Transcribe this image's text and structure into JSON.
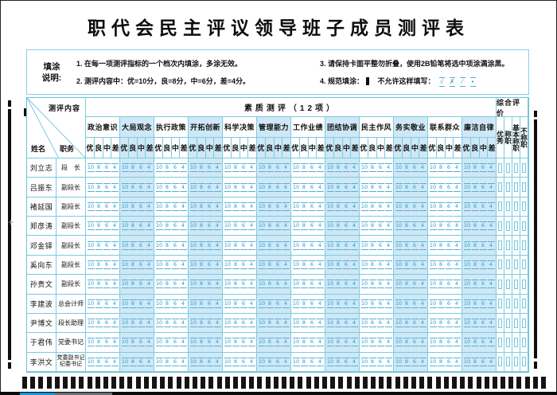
{
  "title": "职代会民主评议领导班子成员测评表",
  "instructions": {
    "label_line1": "填涂",
    "label_line2": "说明:",
    "items": [
      "1. 在每一项测评指标的一个档次内填涂，多涂无效。",
      "2. 测评内容中：优=10分，良=8分，中=6分，差=4分。",
      "3. 请保持卡面平整勿折叠，使用2B铅笔将选中项涂满涂黑。",
      "4. 规范填涂："
    ],
    "item4_middle": "不允许这样填写：",
    "wrong_marks": [
      "√",
      "✗",
      "∕",
      "▪"
    ]
  },
  "table": {
    "corner": {
      "top": "测评内容",
      "col1": "姓名",
      "col2": "职务"
    },
    "group_header": "素质测评（12项）",
    "eval_header": "综合评价",
    "categories": [
      "政治意识",
      "大局观念",
      "执行政策",
      "开拓创新",
      "科学决策",
      "管理能力",
      "工作业绩",
      "团结协调",
      "民主作风",
      "务实敬业",
      "联系群众",
      "廉洁自律"
    ],
    "grade_labels": [
      "优",
      "良",
      "中",
      "差"
    ],
    "bubble_values": [
      "10",
      "8",
      "6",
      "4"
    ],
    "eval_columns": [
      "优秀",
      "称职",
      "基本称职",
      "不称职"
    ],
    "rows": [
      {
        "name": "刘立志",
        "position": "段　长"
      },
      {
        "name": "吕振东",
        "position": "副段长"
      },
      {
        "name": "褚延国",
        "position": "副段长"
      },
      {
        "name": "郑彦涛",
        "position": "副段长"
      },
      {
        "name": "邓金铎",
        "position": "副段长"
      },
      {
        "name": "奚向东",
        "position": "副段长"
      },
      {
        "name": "孙贵文",
        "position": "副段长"
      },
      {
        "name": "李建波",
        "position": "总会计师"
      },
      {
        "name": "尹博文",
        "position": "段长助理"
      },
      {
        "name": "于君伟",
        "position": "党委书记"
      },
      {
        "name": "李洪文",
        "position": "党委副书记\n纪委书记"
      }
    ]
  },
  "timing": {
    "bottom_count": 65
  },
  "colors": {
    "border_cyan": "#7ccadf",
    "shade_blue": "#cfe8f6",
    "bubble_blue": "#2e9bcd",
    "mark_black": "#141414",
    "edge_blue": "#1694d8"
  }
}
